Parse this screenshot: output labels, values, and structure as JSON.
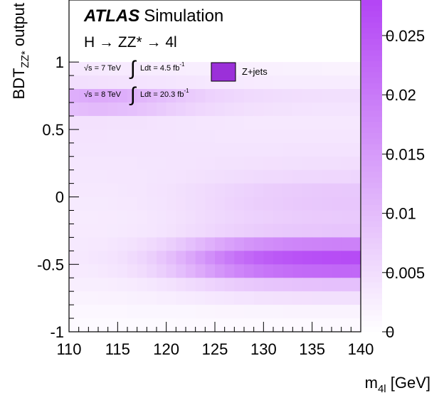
{
  "chart_data": {
    "type": "heatmap",
    "title": "",
    "experiment": "ATLAS",
    "experiment_suffix": "Simulation",
    "process": "H → ZZ* → 4l",
    "lumi_7": {
      "sqrt_s": "√s = 7 TeV",
      "int_label": "Ldt = 4.5 fb",
      "exponent": "-1"
    },
    "lumi_8": {
      "sqrt_s": "√s = 8 TeV",
      "int_label": "Ldt = 20.3 fb",
      "exponent": "-1"
    },
    "legend": {
      "label": "Z+jets",
      "placement": "top-center",
      "color": "#9B30D9"
    },
    "xlabel": {
      "main": "m",
      "sub": "4l",
      "unit": " [GeV]"
    },
    "ylabel": {
      "main": "BDT",
      "sub": "ZZ*",
      "suffix": " output"
    },
    "xlim": [
      110,
      140
    ],
    "ylim": [
      -1,
      1
    ],
    "zlim": [
      0,
      0.028
    ],
    "x_ticks": [
      110,
      115,
      120,
      125,
      130,
      135,
      140
    ],
    "x_tick_labels": [
      "110",
      "115",
      "120",
      "125",
      "130",
      "135",
      "140"
    ],
    "y_ticks": [
      -1,
      -0.5,
      0,
      0.5,
      1
    ],
    "y_tick_labels": [
      "-1",
      "-0.5",
      "0",
      "0.5",
      "1"
    ],
    "z_ticks": [
      0,
      0.005,
      0.01,
      0.015,
      0.02,
      0.025
    ],
    "z_tick_labels": [
      "0",
      "0.005",
      "0.01",
      "0.015",
      "0.02",
      "0.025"
    ],
    "x_bins": 30,
    "y_bins": 20,
    "x_bin_range": [
      110,
      140
    ],
    "y_bin_range": [
      -1,
      1
    ],
    "colors": {
      "low": "#ffffff",
      "high": "#b344f5"
    },
    "rows": [
      [
        0.0035,
        0.0035,
        0.0034,
        0.0033,
        0.0032,
        0.0031,
        0.0031,
        0.003,
        0.0029,
        0.0029,
        0.0028,
        0.0027,
        0.0026,
        0.0026,
        0.0025,
        0.0024,
        0.0024,
        0.0023,
        0.0023,
        0.0022,
        0.0022,
        0.0022,
        0.0021,
        0.0021,
        0.0021,
        0.0021,
        0.002,
        0.002,
        0.002,
        0.002
      ],
      [
        0.0048,
        0.0048,
        0.0047,
        0.0046,
        0.0045,
        0.0044,
        0.0043,
        0.0042,
        0.0041,
        0.0041,
        0.0039,
        0.0038,
        0.0037,
        0.0036,
        0.0034,
        0.0033,
        0.0033,
        0.0032,
        0.0031,
        0.003,
        0.003,
        0.0029,
        0.0029,
        0.0029,
        0.0028,
        0.0028,
        0.0028,
        0.0028,
        0.0028,
        0.0028
      ],
      [
        0.0121,
        0.0125,
        0.0128,
        0.0127,
        0.0125,
        0.0122,
        0.0116,
        0.011,
        0.0104,
        0.0098,
        0.0091,
        0.0084,
        0.0078,
        0.0073,
        0.0068,
        0.0064,
        0.0061,
        0.0058,
        0.0056,
        0.0054,
        0.0052,
        0.0051,
        0.005,
        0.0049,
        0.0048,
        0.0048,
        0.0047,
        0.0047,
        0.0047,
        0.0047
      ],
      [
        0.0098,
        0.0101,
        0.0103,
        0.0103,
        0.0101,
        0.0098,
        0.0094,
        0.009,
        0.0085,
        0.008,
        0.0074,
        0.0069,
        0.0064,
        0.006,
        0.0057,
        0.0054,
        0.0051,
        0.0049,
        0.0047,
        0.0046,
        0.0045,
        0.0044,
        0.0043,
        0.0042,
        0.0042,
        0.0041,
        0.0041,
        0.0041,
        0.0041,
        0.0041
      ],
      [
        0.0045,
        0.0045,
        0.0045,
        0.0045,
        0.0044,
        0.0044,
        0.0043,
        0.0043,
        0.0042,
        0.0041,
        0.004,
        0.0039,
        0.0039,
        0.0038,
        0.0037,
        0.0037,
        0.0036,
        0.0036,
        0.0035,
        0.0035,
        0.0035,
        0.0035,
        0.0034,
        0.0034,
        0.0034,
        0.0034,
        0.0034,
        0.0034,
        0.0034,
        0.0034
      ],
      [
        0.0042,
        0.0042,
        0.0042,
        0.0042,
        0.0041,
        0.0041,
        0.0041,
        0.004,
        0.004,
        0.004,
        0.004,
        0.0039,
        0.0039,
        0.0039,
        0.0039,
        0.0038,
        0.0038,
        0.0038,
        0.0038,
        0.0038,
        0.0038,
        0.0038,
        0.0038,
        0.0038,
        0.0038,
        0.0038,
        0.0038,
        0.0038,
        0.0038,
        0.0038
      ],
      [
        0.004,
        0.004,
        0.004,
        0.004,
        0.004,
        0.004,
        0.004,
        0.004,
        0.004,
        0.004,
        0.004,
        0.004,
        0.004,
        0.004,
        0.004,
        0.0041,
        0.0041,
        0.0041,
        0.0041,
        0.0041,
        0.0041,
        0.0041,
        0.0042,
        0.0042,
        0.0042,
        0.0042,
        0.0042,
        0.0042,
        0.0042,
        0.0042
      ],
      [
        0.0038,
        0.0038,
        0.0038,
        0.0038,
        0.0038,
        0.0038,
        0.0038,
        0.0039,
        0.0039,
        0.0039,
        0.004,
        0.004,
        0.0041,
        0.0042,
        0.0042,
        0.0043,
        0.0043,
        0.0044,
        0.0045,
        0.0045,
        0.0046,
        0.0046,
        0.0047,
        0.0047,
        0.0048,
        0.0048,
        0.0048,
        0.0048,
        0.0049,
        0.0049
      ],
      [
        0.0036,
        0.0036,
        0.0036,
        0.0036,
        0.0037,
        0.0037,
        0.0037,
        0.0038,
        0.0039,
        0.004,
        0.0041,
        0.0042,
        0.0044,
        0.0045,
        0.0047,
        0.0048,
        0.005,
        0.0051,
        0.0053,
        0.0054,
        0.0055,
        0.0056,
        0.0057,
        0.0058,
        0.0059,
        0.0059,
        0.006,
        0.006,
        0.006,
        0.0061
      ],
      [
        0.0034,
        0.0034,
        0.0034,
        0.0035,
        0.0035,
        0.0036,
        0.0037,
        0.0038,
        0.004,
        0.0042,
        0.0044,
        0.0047,
        0.005,
        0.0053,
        0.0056,
        0.0059,
        0.0062,
        0.0065,
        0.0068,
        0.007,
        0.0073,
        0.0075,
        0.0077,
        0.0078,
        0.008,
        0.0081,
        0.0082,
        0.0082,
        0.0083,
        0.0083
      ],
      [
        0.0032,
        0.0032,
        0.0032,
        0.0032,
        0.0033,
        0.0034,
        0.0035,
        0.0037,
        0.0039,
        0.0041,
        0.0043,
        0.0046,
        0.005,
        0.0053,
        0.0057,
        0.006,
        0.0064,
        0.0067,
        0.007,
        0.0073,
        0.0075,
        0.0077,
        0.0079,
        0.0081,
        0.0082,
        0.0083,
        0.0084,
        0.0085,
        0.0085,
        0.0086
      ],
      [
        0.003,
        0.003,
        0.003,
        0.0031,
        0.0031,
        0.0032,
        0.0033,
        0.0035,
        0.0037,
        0.0039,
        0.0042,
        0.0045,
        0.0048,
        0.0052,
        0.0055,
        0.0058,
        0.0061,
        0.0064,
        0.0067,
        0.0069,
        0.0071,
        0.0073,
        0.0075,
        0.0076,
        0.0078,
        0.0079,
        0.0079,
        0.008,
        0.0081,
        0.0081
      ],
      [
        0.0031,
        0.0031,
        0.0031,
        0.0031,
        0.0032,
        0.0033,
        0.0034,
        0.0036,
        0.0038,
        0.0041,
        0.0044,
        0.0048,
        0.0052,
        0.0056,
        0.006,
        0.0064,
        0.0068,
        0.0071,
        0.0074,
        0.0077,
        0.0079,
        0.0081,
        0.0083,
        0.0084,
        0.0085,
        0.0086,
        0.0087,
        0.0088,
        0.0088,
        0.0088
      ],
      [
        0.0033,
        0.0033,
        0.0034,
        0.0035,
        0.0037,
        0.004,
        0.0044,
        0.0049,
        0.0055,
        0.0063,
        0.0072,
        0.0083,
        0.0094,
        0.0106,
        0.0118,
        0.013,
        0.0141,
        0.015,
        0.0158,
        0.0165,
        0.0171,
        0.0175,
        0.0179,
        0.0182,
        0.0184,
        0.0186,
        0.0187,
        0.0188,
        0.0189,
        0.0189
      ],
      [
        0.0035,
        0.0035,
        0.0037,
        0.0039,
        0.0042,
        0.0047,
        0.0054,
        0.0062,
        0.0072,
        0.0085,
        0.0099,
        0.0115,
        0.0132,
        0.015,
        0.0168,
        0.0185,
        0.0201,
        0.0215,
        0.0226,
        0.0236,
        0.0244,
        0.025,
        0.0255,
        0.0259,
        0.0262,
        0.0264,
        0.0266,
        0.0267,
        0.0268,
        0.0268
      ],
      [
        0.0031,
        0.0031,
        0.0032,
        0.0034,
        0.0037,
        0.0041,
        0.0046,
        0.0053,
        0.0062,
        0.0072,
        0.0084,
        0.0098,
        0.0112,
        0.0127,
        0.0142,
        0.0157,
        0.0171,
        0.0182,
        0.0192,
        0.0201,
        0.0208,
        0.0213,
        0.0217,
        0.0221,
        0.0223,
        0.0225,
        0.0226,
        0.0227,
        0.0228,
        0.0228
      ],
      [
        0.0025,
        0.0025,
        0.0025,
        0.0026,
        0.0027,
        0.0028,
        0.003,
        0.0033,
        0.0036,
        0.004,
        0.0044,
        0.0049,
        0.0054,
        0.0059,
        0.0064,
        0.0069,
        0.0074,
        0.0078,
        0.0081,
        0.0084,
        0.0087,
        0.0089,
        0.009,
        0.0092,
        0.0093,
        0.0093,
        0.0094,
        0.0094,
        0.0095,
        0.0095
      ],
      [
        0.0018,
        0.0018,
        0.0018,
        0.0019,
        0.0019,
        0.002,
        0.0021,
        0.0022,
        0.0023,
        0.0025,
        0.0026,
        0.0028,
        0.003,
        0.0032,
        0.0034,
        0.0036,
        0.0038,
        0.004,
        0.0041,
        0.0043,
        0.0044,
        0.0045,
        0.0045,
        0.0046,
        0.0046,
        0.0047,
        0.0047,
        0.0047,
        0.0047,
        0.0047
      ],
      [
        0.0012,
        0.0012,
        0.0012,
        0.0012,
        0.0012,
        0.0012,
        0.0013,
        0.0013,
        0.0013,
        0.0013,
        0.0014,
        0.0014,
        0.0014,
        0.0015,
        0.0015,
        0.0016,
        0.0016,
        0.0016,
        0.0017,
        0.0017,
        0.0017,
        0.0017,
        0.0018,
        0.0018,
        0.0018,
        0.0018,
        0.0018,
        0.0018,
        0.0018,
        0.0018
      ],
      [
        0.0008,
        0.0008,
        0.0008,
        0.0008,
        0.0008,
        0.0008,
        0.0008,
        0.0008,
        0.0008,
        0.0008,
        0.0008,
        0.0009,
        0.0009,
        0.0009,
        0.0009,
        0.0009,
        0.0009,
        0.0009,
        0.0009,
        0.0009,
        0.0009,
        0.0009,
        0.0009,
        0.0009,
        0.0009,
        0.0009,
        0.0009,
        0.0009,
        0.0009,
        0.0009
      ]
    ]
  }
}
